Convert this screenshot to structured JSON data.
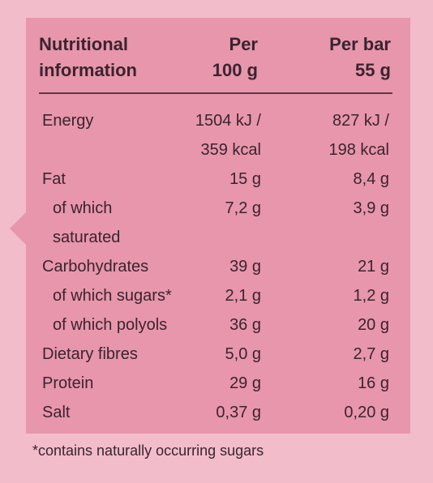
{
  "table": {
    "header": {
      "name": "Nutritional\ninformation",
      "per100": "Per\n100 g",
      "perBar": "Per bar\n55 g"
    },
    "rows": [
      {
        "name": "Energy",
        "per100": "1504 kJ /",
        "perBar": "827 kJ /"
      },
      {
        "name": "",
        "per100": "359 kcal",
        "perBar": "198 kcal"
      },
      {
        "name": "Fat",
        "per100": "15 g",
        "perBar": "8,4 g"
      },
      {
        "name": "of which",
        "per100": "7,2 g",
        "perBar": "3,9 g"
      },
      {
        "name": "saturated",
        "per100": "",
        "perBar": ""
      },
      {
        "name": "Carbohydrates",
        "per100": "39 g",
        "perBar": "21 g"
      },
      {
        "name": "of which sugars*",
        "per100": "2,1 g",
        "perBar": "1,2 g"
      },
      {
        "name": "of which polyols",
        "per100": "36 g",
        "perBar": "20 g"
      },
      {
        "name": "Dietary fibres",
        "per100": "5,0 g",
        "perBar": "2,7 g"
      },
      {
        "name": "Protein",
        "per100": "29 g",
        "perBar": "16 g"
      },
      {
        "name": "Salt",
        "per100": "0,37 g",
        "perBar": "0,20 g"
      }
    ]
  },
  "footnote": "*contains naturally occurring sugars"
}
